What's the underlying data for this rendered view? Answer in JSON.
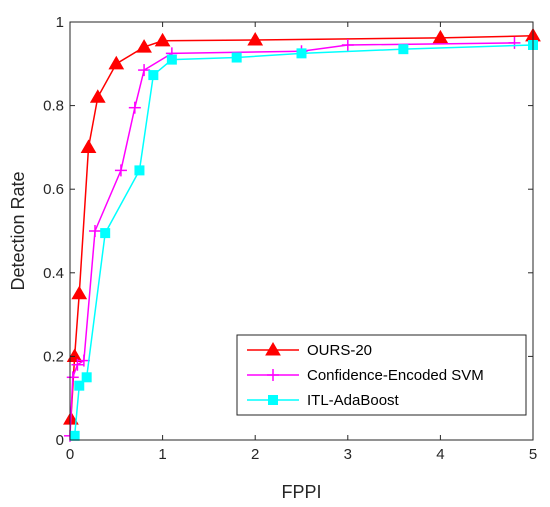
{
  "chart_data": {
    "type": "line",
    "xlabel": "FPPI",
    "ylabel": "Detection Rate",
    "xlim": [
      0,
      5
    ],
    "ylim": [
      0,
      1
    ],
    "xticks": [
      0,
      1,
      2,
      3,
      4,
      5
    ],
    "yticks": [
      0,
      0.2,
      0.4,
      0.6,
      0.8,
      1
    ],
    "xtick_labels": [
      "0",
      "1",
      "2",
      "3",
      "4",
      "5"
    ],
    "ytick_labels": [
      "0",
      "0.2",
      "0.4",
      "0.6",
      "0.8",
      "1"
    ],
    "grid": false,
    "legend_position": "bottom-right",
    "series": [
      {
        "name": "OURS-20",
        "color": "#ff0000",
        "marker": "triangle",
        "x": [
          0.01,
          0.05,
          0.1,
          0.2,
          0.3,
          0.5,
          0.8,
          1.0,
          2.0,
          4.0,
          5.0
        ],
        "y": [
          0.05,
          0.2,
          0.35,
          0.7,
          0.82,
          0.9,
          0.94,
          0.955,
          0.957,
          0.962,
          0.967
        ]
      },
      {
        "name": "Confidence-Encoded SVM",
        "color": "#ff00ff",
        "marker": "plus",
        "x": [
          0.0,
          0.03,
          0.08,
          0.15,
          0.27,
          0.55,
          0.7,
          0.8,
          1.1,
          2.5,
          3.0,
          4.8
        ],
        "y": [
          0.01,
          0.15,
          0.18,
          0.19,
          0.5,
          0.645,
          0.795,
          0.885,
          0.925,
          0.93,
          0.945,
          0.95
        ]
      },
      {
        "name": "ITL-AdaBoost",
        "color": "#00ffff",
        "marker": "square",
        "x": [
          0.05,
          0.1,
          0.18,
          0.38,
          0.75,
          0.9,
          1.1,
          1.8,
          2.5,
          3.6,
          5.0
        ],
        "y": [
          0.01,
          0.13,
          0.15,
          0.495,
          0.645,
          0.873,
          0.91,
          0.915,
          0.925,
          0.935,
          0.945
        ]
      }
    ]
  }
}
